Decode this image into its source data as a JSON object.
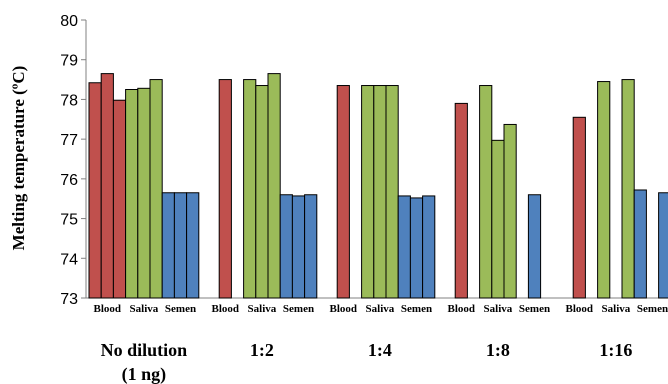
{
  "chart_data": {
    "type": "bar",
    "ylabel": "Melting temperature (ºC)",
    "ylim": [
      73,
      80
    ],
    "yticks": [
      73,
      74,
      75,
      76,
      77,
      78,
      79,
      80
    ],
    "grid": false,
    "legend": "none",
    "colors": {
      "Blood": "#c0504d",
      "Saliva": "#9bbb59",
      "Semen": "#4f81bd"
    },
    "groups": [
      {
        "label": "No dilution",
        "label_line2": "(1 ng)",
        "sub_labels": [
          "Blood",
          "Saliva",
          "Semen"
        ],
        "bars": [
          {
            "type": "Blood",
            "value": 78.42
          },
          {
            "type": "Blood",
            "value": 78.65
          },
          {
            "type": "Blood",
            "value": 77.98
          },
          {
            "type": "Saliva",
            "value": 78.25
          },
          {
            "type": "Saliva",
            "value": 78.28
          },
          {
            "type": "Saliva",
            "value": 78.5
          },
          {
            "type": "Semen",
            "value": 75.65
          },
          {
            "type": "Semen",
            "value": 75.65
          },
          {
            "type": "Semen",
            "value": 75.65
          }
        ]
      },
      {
        "label": "1:2",
        "label_line2": "",
        "sub_labels": [
          "Blood",
          "Saliva",
          "Semen"
        ],
        "bars": [
          {
            "type": "Blood",
            "value": null
          },
          {
            "type": "Blood",
            "value": 78.5
          },
          {
            "type": "Blood",
            "value": null
          },
          {
            "type": "Saliva",
            "value": 78.5
          },
          {
            "type": "Saliva",
            "value": 78.35
          },
          {
            "type": "Saliva",
            "value": 78.65
          },
          {
            "type": "Semen",
            "value": 75.6
          },
          {
            "type": "Semen",
            "value": 75.57
          },
          {
            "type": "Semen",
            "value": 75.6
          }
        ]
      },
      {
        "label": "1:4",
        "label_line2": "",
        "sub_labels": [
          "Blood",
          "Saliva",
          "Semen"
        ],
        "bars": [
          {
            "type": "Blood",
            "value": null
          },
          {
            "type": "Blood",
            "value": 78.35
          },
          {
            "type": "Blood",
            "value": null
          },
          {
            "type": "Saliva",
            "value": 78.35
          },
          {
            "type": "Saliva",
            "value": 78.35
          },
          {
            "type": "Saliva",
            "value": 78.35
          },
          {
            "type": "Semen",
            "value": 75.57
          },
          {
            "type": "Semen",
            "value": 75.52
          },
          {
            "type": "Semen",
            "value": 75.57
          }
        ]
      },
      {
        "label": "1:8",
        "label_line2": "",
        "sub_labels": [
          "Blood",
          "Saliva",
          "Semen"
        ],
        "bars": [
          {
            "type": "Blood",
            "value": null
          },
          {
            "type": "Blood",
            "value": 77.9
          },
          {
            "type": "Blood",
            "value": null
          },
          {
            "type": "Saliva",
            "value": 78.35
          },
          {
            "type": "Saliva",
            "value": 76.97
          },
          {
            "type": "Saliva",
            "value": 77.37
          },
          {
            "type": "Semen",
            "value": null
          },
          {
            "type": "Semen",
            "value": 75.6
          },
          {
            "type": "Semen",
            "value": null
          }
        ]
      },
      {
        "label": "1:16",
        "label_line2": "",
        "sub_labels": [
          "Blood",
          "Saliva",
          "Semen"
        ],
        "bars": [
          {
            "type": "Blood",
            "value": null
          },
          {
            "type": "Blood",
            "value": 77.55
          },
          {
            "type": "Blood",
            "value": null
          },
          {
            "type": "Saliva",
            "value": 78.45
          },
          {
            "type": "Saliva",
            "value": null
          },
          {
            "type": "Saliva",
            "value": 78.5
          },
          {
            "type": "Semen",
            "value": 75.72
          },
          {
            "type": "Semen",
            "value": null
          },
          {
            "type": "Semen",
            "value": 75.65
          }
        ]
      }
    ]
  }
}
